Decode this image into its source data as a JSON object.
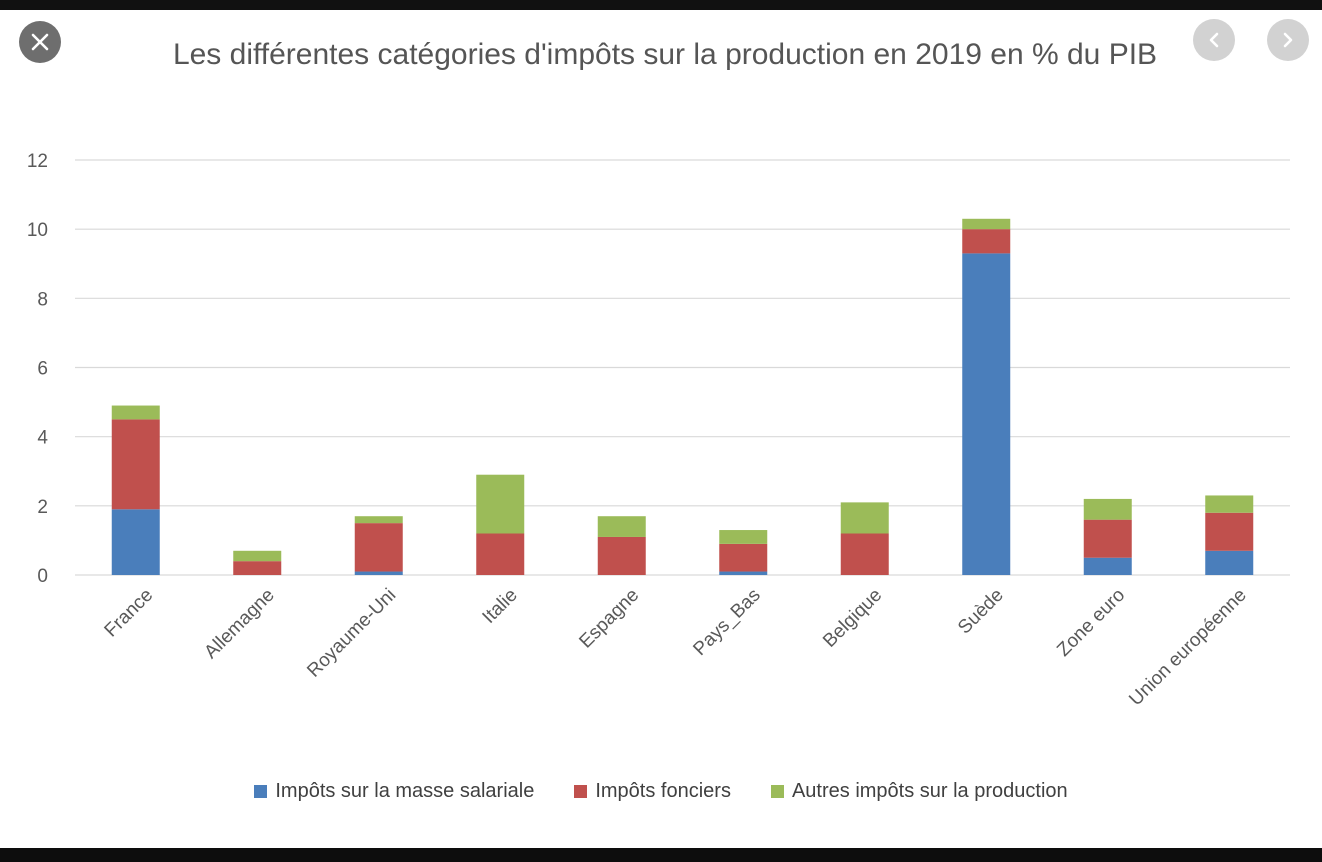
{
  "viewer": {
    "close_icon": "close-x-icon",
    "prev_icon": "chevron-left-icon",
    "next_icon": "chevron-right-icon"
  },
  "colors": {
    "masse_salariale": "#4a7ebb",
    "fonciers": "#c0504d",
    "autres": "#9bbb59",
    "grid": "#d9d9d9",
    "axis_text": "#595959"
  },
  "chart_data": {
    "type": "bar",
    "stacked": true,
    "title": "Les différentes catégories d'impôts sur la production en 2019 en % du PIB",
    "xlabel": "",
    "ylabel": "",
    "ylim": [
      0,
      12
    ],
    "yticks": [
      0,
      2,
      4,
      6,
      8,
      10,
      12
    ],
    "grid": true,
    "legend_position": "bottom",
    "categories": [
      "France",
      "Allemagne",
      "Royaume-Uni",
      "Italie",
      "Espagne",
      "Pays_Bas",
      "Belgique",
      "Suède",
      "Zone euro",
      "Union européenne"
    ],
    "series": [
      {
        "name": "Impôts sur la masse salariale",
        "values": [
          1.9,
          0.0,
          0.1,
          0.0,
          0.0,
          0.1,
          0.0,
          9.3,
          0.5,
          0.7
        ]
      },
      {
        "name": "Impôts fonciers",
        "values": [
          2.6,
          0.4,
          1.4,
          1.2,
          1.1,
          0.8,
          1.2,
          0.7,
          1.1,
          1.1
        ]
      },
      {
        "name": "Autres impôts sur la production",
        "values": [
          0.4,
          0.3,
          0.2,
          1.7,
          0.6,
          0.4,
          0.9,
          0.3,
          0.6,
          0.5
        ]
      }
    ]
  }
}
